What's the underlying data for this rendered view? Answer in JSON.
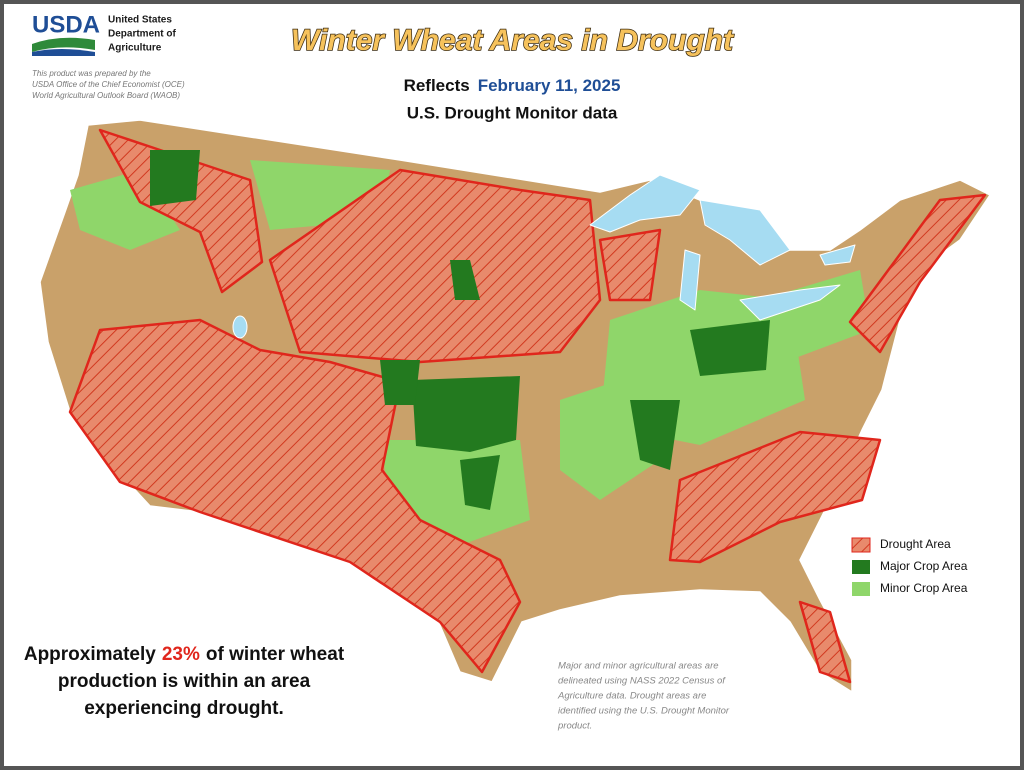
{
  "header": {
    "agency": "USDA",
    "org_lines": [
      "United States",
      "Department of",
      "Agriculture"
    ],
    "note_lines": [
      "This product was prepared by the",
      "USDA Office of the Chief Economist (OCE)",
      "World Agricultural Outlook Board (WAOB)"
    ],
    "title": "Winter Wheat Areas in Drought",
    "reflects_label": "Reflects",
    "date": "February 11, 2025",
    "subtitle": "U.S. Drought Monitor data"
  },
  "legend": {
    "items": [
      "Drought Area",
      "Major Crop Area",
      "Minor Crop Area"
    ]
  },
  "summary": {
    "line1_before": "Approximately",
    "highlight": "23%",
    "line1_after": "of winter wheat",
    "line2": "production is within an area",
    "line3": "experiencing drought."
  },
  "footnote": {
    "lines": [
      "Major and minor agricultural areas are",
      "delineated using NASS 2022 Census of",
      "Agriculture data.  Drought areas are",
      "identified using the U.S. Drought Monitor",
      "product."
    ]
  }
}
